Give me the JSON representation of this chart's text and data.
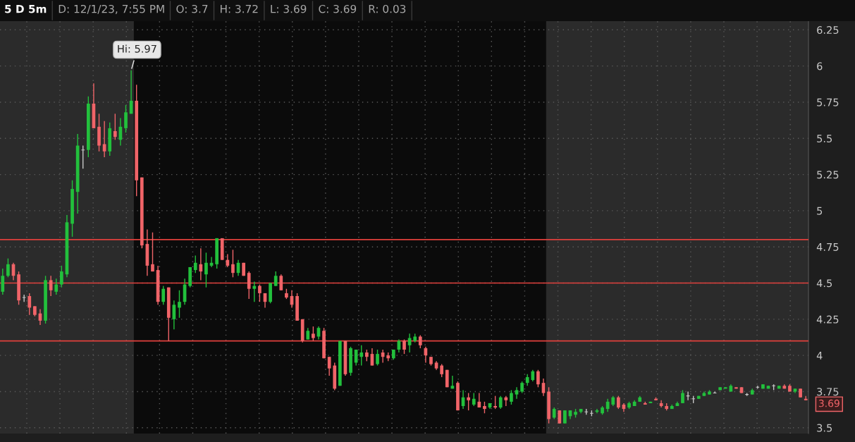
{
  "chart_data": {
    "type": "candlestick",
    "title": "5 D 5m",
    "annotations": [
      "D: 12/1/23, 7:55 PM",
      "O: 3.7",
      "H: 3.72",
      "L: 3.69",
      "C: 3.69",
      "R: 0.03",
      "Hi: 5.97",
      "3.69"
    ],
    "categories": [
      null,
      null,
      null,
      null,
      null,
      null,
      null,
      null,
      null,
      null,
      null,
      null,
      null,
      null,
      null,
      null,
      null,
      null,
      null,
      null,
      null,
      null,
      null,
      null,
      null,
      null,
      null,
      null,
      null,
      null,
      null,
      null,
      null,
      null,
      null,
      null,
      null,
      null,
      null,
      null,
      null,
      null,
      null,
      null,
      null,
      null,
      null,
      null,
      null,
      null,
      null,
      null,
      null,
      null,
      null,
      null,
      null,
      null,
      null,
      null,
      null,
      null,
      null,
      null,
      null,
      null,
      null,
      null,
      null,
      null,
      null,
      null,
      null,
      null,
      null,
      null,
      null,
      null,
      null,
      null,
      null,
      null,
      null,
      null,
      null,
      null,
      null,
      null,
      null,
      null,
      null,
      null,
      null,
      null,
      null,
      null,
      null,
      null,
      null,
      null,
      null,
      null,
      null,
      null,
      null,
      null,
      null,
      null,
      null,
      null,
      null,
      null,
      null,
      null,
      null,
      null,
      null,
      null,
      null,
      null,
      null,
      null,
      null,
      null,
      null,
      null,
      null,
      null,
      null,
      null,
      null,
      null,
      null,
      null,
      null,
      null,
      null,
      null,
      null,
      null,
      null,
      null,
      null,
      null,
      null,
      null,
      null,
      null,
      null,
      null,
      null
    ],
    "ohlc": [
      [
        4.44,
        4.6,
        4.42,
        4.55
      ],
      [
        4.55,
        4.67,
        4.54,
        4.63
      ],
      [
        4.63,
        4.64,
        4.52,
        4.55
      ],
      [
        4.56,
        4.58,
        4.35,
        4.38
      ],
      [
        4.4,
        4.42,
        4.37,
        4.4
      ],
      [
        4.41,
        4.43,
        4.28,
        4.33
      ],
      [
        4.34,
        4.34,
        4.27,
        4.28
      ],
      [
        4.29,
        4.32,
        4.21,
        4.24
      ],
      [
        4.24,
        4.55,
        4.22,
        4.52
      ],
      [
        4.52,
        4.55,
        4.41,
        4.45
      ],
      [
        4.44,
        4.53,
        4.42,
        4.49
      ],
      [
        4.49,
        4.62,
        4.47,
        4.58
      ],
      [
        4.56,
        4.97,
        4.54,
        4.92
      ],
      [
        4.91,
        5.21,
        4.82,
        5.15
      ],
      [
        5.13,
        5.53,
        4.98,
        5.45
      ],
      [
        5.42,
        5.45,
        5.29,
        5.42
      ],
      [
        5.42,
        5.79,
        5.37,
        5.74
      ],
      [
        5.74,
        5.88,
        5.57,
        5.57
      ],
      [
        5.58,
        5.67,
        5.41,
        5.45
      ],
      [
        5.46,
        5.62,
        5.37,
        5.41
      ],
      [
        5.41,
        5.61,
        5.38,
        5.57
      ],
      [
        5.55,
        5.67,
        5.49,
        5.51
      ],
      [
        5.49,
        5.64,
        5.45,
        5.58
      ],
      [
        5.57,
        5.73,
        5.54,
        5.68
      ],
      [
        5.67,
        5.97,
        5.67,
        5.76
      ],
      [
        5.76,
        5.87,
        5.1,
        5.21
      ],
      [
        5.23,
        5.23,
        4.74,
        4.76
      ],
      [
        4.77,
        4.87,
        4.55,
        4.62
      ],
      [
        4.63,
        4.85,
        4.58,
        4.58
      ],
      [
        4.59,
        4.62,
        4.35,
        4.37
      ],
      [
        4.37,
        4.48,
        4.35,
        4.46
      ],
      [
        4.47,
        4.47,
        4.1,
        4.26
      ],
      [
        4.25,
        4.38,
        4.18,
        4.35
      ],
      [
        4.33,
        4.45,
        4.26,
        4.37
      ],
      [
        4.37,
        4.53,
        4.35,
        4.49
      ],
      [
        4.48,
        4.61,
        4.47,
        4.61
      ],
      [
        4.59,
        4.69,
        4.57,
        4.64
      ],
      [
        4.63,
        4.74,
        4.52,
        4.58
      ],
      [
        4.56,
        4.71,
        4.47,
        4.64
      ],
      [
        4.62,
        4.68,
        4.61,
        4.64
      ],
      [
        4.63,
        4.81,
        4.6,
        4.81
      ],
      [
        4.81,
        4.81,
        4.66,
        4.66
      ],
      [
        4.66,
        4.7,
        4.61,
        4.62
      ],
      [
        4.63,
        4.73,
        4.54,
        4.57
      ],
      [
        4.57,
        4.66,
        4.55,
        4.64
      ],
      [
        4.64,
        4.64,
        4.55,
        4.55
      ],
      [
        4.57,
        4.58,
        4.39,
        4.46
      ],
      [
        4.46,
        4.51,
        4.37,
        4.48
      ],
      [
        4.48,
        4.49,
        4.37,
        4.43
      ],
      [
        4.43,
        4.43,
        4.33,
        4.37
      ],
      [
        4.37,
        4.5,
        4.36,
        4.5
      ],
      [
        4.48,
        4.58,
        4.48,
        4.55
      ],
      [
        4.55,
        4.56,
        4.45,
        4.45
      ],
      [
        4.43,
        4.46,
        4.39,
        4.4
      ],
      [
        4.41,
        4.45,
        4.33,
        4.35
      ],
      [
        4.41,
        4.43,
        4.24,
        4.24
      ],
      [
        4.25,
        4.25,
        4.09,
        4.1
      ],
      [
        4.11,
        4.19,
        4.11,
        4.17
      ],
      [
        4.15,
        4.2,
        4.1,
        4.12
      ],
      [
        4.13,
        4.2,
        4.11,
        4.19
      ],
      [
        4.17,
        4.19,
        3.98,
        3.98
      ],
      [
        3.99,
        3.99,
        3.86,
        3.91
      ],
      [
        3.93,
        3.95,
        3.76,
        3.77
      ],
      [
        3.79,
        4.1,
        3.79,
        4.1
      ],
      [
        4.1,
        4.1,
        3.86,
        3.87
      ],
      [
        3.88,
        4.06,
        3.86,
        4.05
      ],
      [
        3.95,
        4.04,
        3.93,
        4.04
      ],
      [
        3.99,
        4.07,
        3.93,
        4.02
      ],
      [
        4.02,
        4.04,
        3.96,
        3.99
      ],
      [
        4.01,
        4.05,
        3.93,
        3.93
      ],
      [
        3.94,
        4.04,
        3.93,
        4.01
      ],
      [
        4.02,
        4.04,
        3.95,
        3.99
      ],
      [
        4.0,
        4.02,
        3.96,
        3.98
      ],
      [
        3.98,
        4.04,
        3.97,
        4.04
      ],
      [
        4.04,
        4.11,
        4.02,
        4.1
      ],
      [
        4.1,
        4.11,
        4.01,
        4.04
      ],
      [
        4.07,
        4.15,
        4.02,
        4.12
      ],
      [
        4.1,
        4.15,
        4.09,
        4.13
      ],
      [
        4.13,
        4.14,
        4.05,
        4.07
      ],
      [
        4.05,
        4.06,
        3.95,
        4.0
      ],
      [
        3.99,
        3.99,
        3.93,
        3.94
      ],
      [
        3.95,
        3.96,
        3.9,
        3.91
      ],
      [
        3.93,
        3.94,
        3.85,
        3.87
      ],
      [
        3.9,
        3.9,
        3.78,
        3.78
      ],
      [
        3.77,
        3.86,
        3.77,
        3.79
      ],
      [
        3.81,
        3.82,
        3.62,
        3.62
      ],
      [
        3.65,
        3.76,
        3.63,
        3.71
      ],
      [
        3.71,
        3.74,
        3.62,
        3.69
      ],
      [
        3.66,
        3.74,
        3.65,
        3.7
      ],
      [
        3.68,
        3.74,
        3.64,
        3.64
      ],
      [
        3.65,
        3.68,
        3.6,
        3.63
      ],
      [
        3.64,
        3.67,
        3.63,
        3.67
      ],
      [
        3.65,
        3.72,
        3.63,
        3.64
      ],
      [
        3.64,
        3.72,
        3.63,
        3.71
      ],
      [
        3.71,
        3.72,
        3.65,
        3.69
      ],
      [
        3.68,
        3.76,
        3.66,
        3.74
      ],
      [
        3.73,
        3.78,
        3.7,
        3.76
      ],
      [
        3.75,
        3.82,
        3.74,
        3.81
      ],
      [
        3.81,
        3.87,
        3.79,
        3.85
      ],
      [
        3.83,
        3.9,
        3.82,
        3.89
      ],
      [
        3.89,
        3.9,
        3.78,
        3.8
      ],
      [
        3.81,
        3.84,
        3.72,
        3.74
      ],
      [
        3.75,
        3.78,
        3.53,
        3.56
      ],
      [
        3.57,
        3.64,
        3.56,
        3.63
      ],
      [
        3.62,
        3.62,
        3.53,
        3.53
      ],
      [
        3.53,
        3.62,
        3.53,
        3.62
      ],
      [
        3.58,
        3.62,
        3.56,
        3.62
      ],
      [
        3.59,
        3.63,
        3.57,
        3.61
      ],
      [
        3.61,
        3.63,
        3.6,
        3.63
      ],
      [
        3.61,
        3.63,
        3.59,
        3.61
      ],
      [
        3.6,
        3.62,
        3.58,
        3.6
      ],
      [
        3.61,
        3.63,
        3.6,
        3.62
      ],
      [
        3.6,
        3.65,
        3.59,
        3.64
      ],
      [
        3.63,
        3.7,
        3.61,
        3.68
      ],
      [
        3.66,
        3.72,
        3.65,
        3.71
      ],
      [
        3.71,
        3.72,
        3.63,
        3.64
      ],
      [
        3.66,
        3.67,
        3.61,
        3.63
      ],
      [
        3.64,
        3.68,
        3.63,
        3.67
      ],
      [
        3.65,
        3.69,
        3.65,
        3.68
      ],
      [
        3.68,
        3.72,
        3.68,
        3.71
      ],
      [
        3.67,
        3.68,
        3.66,
        3.66
      ],
      [
        3.67,
        3.68,
        3.67,
        3.68
      ],
      [
        3.7,
        3.71,
        3.69,
        3.69
      ],
      [
        3.67,
        3.69,
        3.64,
        3.65
      ],
      [
        3.65,
        3.67,
        3.62,
        3.63
      ],
      [
        3.63,
        3.66,
        3.63,
        3.65
      ],
      [
        3.65,
        3.68,
        3.65,
        3.67
      ],
      [
        3.67,
        3.76,
        3.67,
        3.74
      ],
      [
        3.72,
        3.75,
        3.69,
        3.72
      ],
      [
        3.7,
        3.72,
        3.67,
        3.7
      ],
      [
        3.7,
        3.72,
        3.7,
        3.72
      ],
      [
        3.72,
        3.75,
        3.72,
        3.74
      ],
      [
        3.73,
        3.76,
        3.73,
        3.75
      ],
      [
        3.74,
        3.75,
        3.74,
        3.74
      ],
      [
        3.76,
        3.78,
        3.76,
        3.78
      ],
      [
        3.77,
        3.78,
        3.77,
        3.78
      ],
      [
        3.75,
        3.8,
        3.75,
        3.79
      ],
      [
        3.78,
        3.78,
        3.77,
        3.77
      ],
      [
        3.78,
        3.78,
        3.74,
        3.74
      ],
      [
        3.73,
        3.74,
        3.72,
        3.73
      ],
      [
        3.73,
        3.77,
        3.73,
        3.76
      ],
      [
        3.78,
        3.79,
        3.77,
        3.78
      ],
      [
        3.77,
        3.8,
        3.77,
        3.8
      ],
      [
        3.77,
        3.79,
        3.77,
        3.79
      ],
      [
        3.79,
        3.8,
        3.76,
        3.79
      ],
      [
        3.77,
        3.79,
        3.77,
        3.79
      ],
      [
        3.79,
        3.8,
        3.77,
        3.77
      ],
      [
        3.79,
        3.8,
        3.75,
        3.75
      ],
      [
        3.75,
        3.77,
        3.74,
        3.77
      ],
      [
        3.77,
        3.77,
        3.71,
        3.71
      ],
      [
        3.7,
        3.72,
        3.69,
        3.69
      ]
    ],
    "colors": [
      "#22c03c",
      "#22c03c",
      "#f06468",
      "#f06468",
      "#c8c8c8",
      "#f06468",
      "#f06468",
      "#f06468",
      "#22c03c",
      "#f06468",
      "#22c03c",
      "#22c03c",
      "#22c03c",
      "#22c03c",
      "#22c03c",
      "#c8c8c8",
      "#22c03c",
      "#f06468",
      "#f06468",
      "#f06468",
      "#22c03c",
      "#f06468",
      "#22c03c",
      "#22c03c",
      "#22c03c",
      "#f06468",
      "#f06468",
      "#f06468",
      "#f06468",
      "#f06468",
      "#22c03c",
      "#f06468",
      "#22c03c",
      "#22c03c",
      "#22c03c",
      "#22c03c",
      "#22c03c",
      "#f06468",
      "#22c03c",
      "#22c03c",
      "#22c03c",
      "#f06468",
      "#f06468",
      "#f06468",
      "#22c03c",
      "#f06468",
      "#f06468",
      "#22c03c",
      "#f06468",
      "#f06468",
      "#22c03c",
      "#22c03c",
      "#f06468",
      "#f06468",
      "#f06468",
      "#f06468",
      "#f06468",
      "#22c03c",
      "#f06468",
      "#22c03c",
      "#f06468",
      "#f06468",
      "#f06468",
      "#22c03c",
      "#f06468",
      "#22c03c",
      "#22c03c",
      "#22c03c",
      "#f06468",
      "#f06468",
      "#22c03c",
      "#f06468",
      "#f06468",
      "#22c03c",
      "#22c03c",
      "#f06468",
      "#22c03c",
      "#22c03c",
      "#f06468",
      "#f06468",
      "#f06468",
      "#f06468",
      "#f06468",
      "#f06468",
      "#22c03c",
      "#f06468",
      "#22c03c",
      "#f06468",
      "#22c03c",
      "#f06468",
      "#f06468",
      "#22c03c",
      "#f06468",
      "#22c03c",
      "#f06468",
      "#22c03c",
      "#22c03c",
      "#22c03c",
      "#22c03c",
      "#22c03c",
      "#f06468",
      "#f06468",
      "#f06468",
      "#22c03c",
      "#f06468",
      "#22c03c",
      "#22c03c",
      "#22c03c",
      "#22c03c",
      "#c8c8c8",
      "#c8c8c8",
      "#22c03c",
      "#22c03c",
      "#22c03c",
      "#22c03c",
      "#f06468",
      "#f06468",
      "#22c03c",
      "#22c03c",
      "#22c03c",
      "#f06468",
      "#22c03c",
      "#f06468",
      "#f06468",
      "#f06468",
      "#22c03c",
      "#22c03c",
      "#22c03c",
      "#c8c8c8",
      "#c8c8c8",
      "#22c03c",
      "#22c03c",
      "#22c03c",
      "#c8c8c8",
      "#22c03c",
      "#22c03c",
      "#22c03c",
      "#f06468",
      "#f06468",
      "#c8c8c8",
      "#22c03c",
      "#c8c8c8",
      "#22c03c",
      "#22c03c",
      "#c8c8c8",
      "#22c03c",
      "#f06468",
      "#f06468",
      "#22c03c",
      "#f06468",
      "#f06468"
    ],
    "ylim": [
      3.46,
      6.31
    ],
    "yticks": [
      3.5,
      3.75,
      4,
      4.25,
      4.5,
      4.75,
      5,
      5.25,
      5.5,
      5.75,
      6,
      6.25
    ],
    "ref_lines": [
      {
        "axis": "y",
        "value": 4.8,
        "color": "#e0403c"
      },
      {
        "axis": "y",
        "value": 4.5,
        "color": "#e0403c"
      },
      {
        "axis": "y",
        "value": 4.1,
        "color": "#e0403c"
      }
    ],
    "grid": true,
    "tick_labels": "y"
  }
}
